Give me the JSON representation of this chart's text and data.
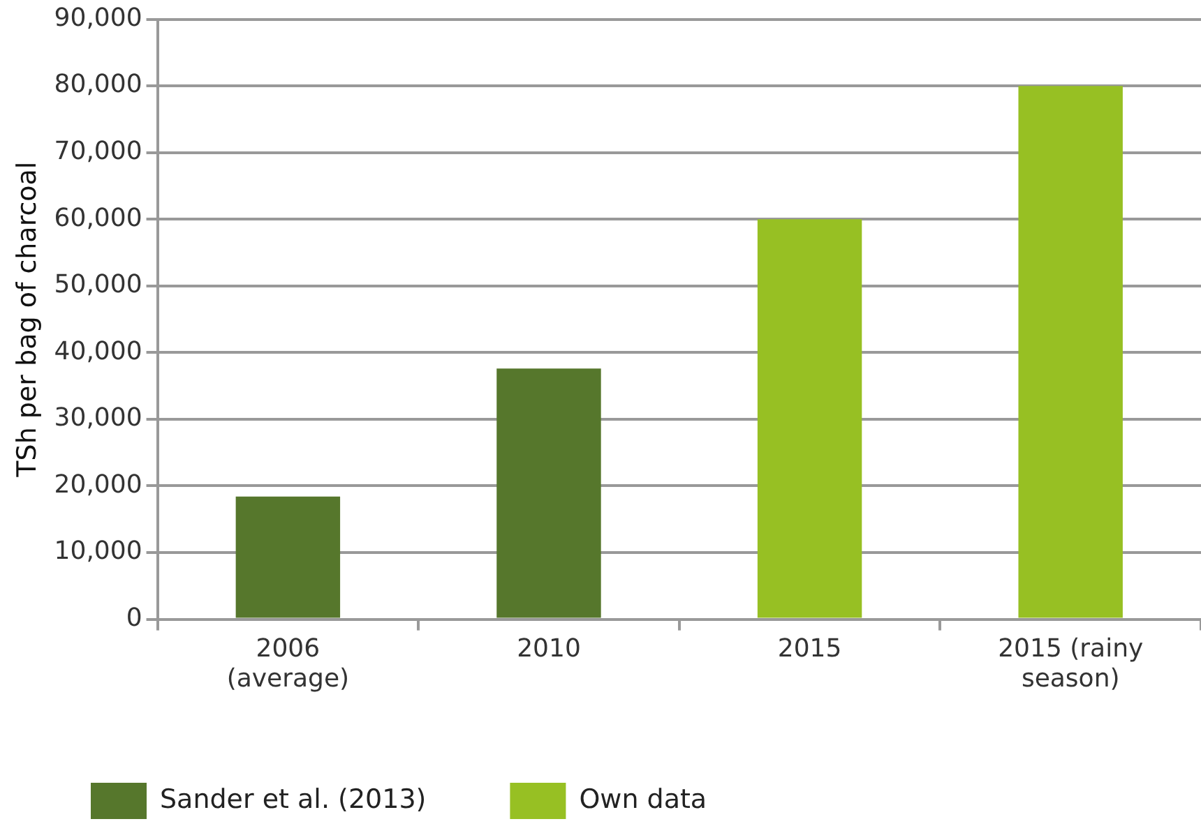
{
  "chart_data": {
    "type": "bar",
    "ylabel": "TSh per bag of charcoal",
    "categories": [
      "2006 (average)",
      "2010",
      "2015",
      "2015 (rainy season)"
    ],
    "series": [
      {
        "name": "Sander et al. (2013)",
        "color": "#56772c",
        "values": [
          18400,
          37600,
          null,
          null
        ]
      },
      {
        "name": "Own data",
        "color": "#97c023",
        "values": [
          null,
          null,
          60000,
          80000
        ]
      }
    ],
    "ylim": [
      0,
      90000
    ],
    "yticks": [
      0,
      {
        "value": 10000,
        "label": "10,000"
      },
      {
        "value": 20000,
        "label": "20,000"
      },
      {
        "value": 30000,
        "label": "30,000"
      },
      {
        "value": 40000,
        "label": "40,000"
      },
      {
        "value": 50000,
        "label": "50,000"
      },
      {
        "value": 60000,
        "label": "60,000"
      },
      {
        "value": 70000,
        "label": "70,000"
      },
      {
        "value": 80000,
        "label": "80,000"
      },
      {
        "value": 90000,
        "label": "90,000"
      }
    ],
    "grid": "y",
    "legend": "bottom"
  }
}
